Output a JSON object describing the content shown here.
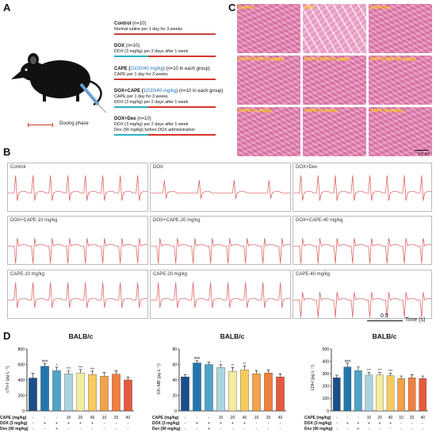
{
  "panels": {
    "a": "A",
    "b": "B",
    "c": "C",
    "d": "D"
  },
  "legend": {
    "dosing_phase": "Dosing phase"
  },
  "groups": [
    {
      "title_bold": "Control",
      "title_rest": " (n=10)",
      "title_blue": "",
      "lines": [
        "Normal saline per 1 day for 3 weeks"
      ]
    },
    {
      "title_bold": "DOX",
      "title_rest": " (n=10)",
      "title_blue": "",
      "lines": [
        "DOX (3 mg/kg) per 2 days after 1 week"
      ]
    },
    {
      "title_bold": "CAPE (",
      "title_blue": "10/20/40 mg/kg",
      "title_rest": ") (n=10 in each group)",
      "lines": [
        "CAPE per 1 day for 3 weeks"
      ]
    },
    {
      "title_bold": "DOX+CAPE (",
      "title_blue": "10/20/40 mg/kg",
      "title_rest": ") (n=10 in each group)",
      "lines": [
        "CAPE per 1 day for 3 weeks",
        "DOX (3 mg/kg) per 2 days after 1 week"
      ]
    },
    {
      "title_bold": "DOX+Dex",
      "title_rest": " (n=10)",
      "title_blue": "",
      "lines": [
        "DOX (3 mg/kg) per 2 days after 1 week",
        "Dex (90 mg/kg) before DOX administration"
      ]
    }
  ],
  "histology": {
    "labels": [
      "Control",
      "DOX",
      "DOX+Dex",
      "DOX+CAPE-10 mg/kg",
      "DOX+CAPE-20 mg/kg",
      "DOX+CAPE-40 mg/kg",
      "CAPE-10 mg/kg",
      "CAPE-20 mg/kg",
      "CAPE-40 mg/kg"
    ],
    "scale_bar": "100 μm"
  },
  "ecg": {
    "labels": [
      "Control",
      "DOX",
      "DOX+Dex",
      "DOX+CAPE-10 mg/kg",
      "DOX+CAPE-20 mg/kg",
      "DOX+CAPE-40 mg/kg",
      "CAPE-10 mg/kg",
      "CAPE-20 mg/kg",
      "CAPE-40 mg/kg"
    ],
    "scale_value": "0.5",
    "scale_unit": "Time (s)"
  },
  "treatment_table": {
    "rows": [
      "CAPE (mg/kg)",
      "DOX (3 mg/kg)",
      "Dex (90 mg/kg)"
    ],
    "cells": [
      [
        "-",
        "-",
        "-",
        "10",
        "20",
        "40",
        "10",
        "20",
        "40"
      ],
      [
        "-",
        "+",
        "+",
        "+",
        "+",
        "+",
        "-",
        "-",
        "-"
      ],
      [
        "-",
        "-",
        "+",
        "-",
        "-",
        "-",
        "-",
        "-",
        "-"
      ]
    ]
  },
  "chart_data": [
    {
      "type": "bar",
      "title": "BALB/c",
      "ylabel": "cTn-I (pg·L⁻¹)",
      "ylim": [
        0,
        800
      ],
      "yticks": [
        0,
        200,
        400,
        600,
        800
      ],
      "values": [
        425,
        578,
        520,
        478,
        490,
        470,
        448,
        475,
        400
      ],
      "errors": [
        60,
        35,
        45,
        40,
        45,
        45,
        50,
        45,
        35
      ],
      "annotations": [
        "",
        "###",
        "*",
        "***",
        "***",
        "***",
        "",
        "",
        ""
      ],
      "colors": [
        "#1c4f8a",
        "#2177ad",
        "#4fa3c7",
        "#a9d4df",
        "#f2eca0",
        "#f6cb5d",
        "#f2a24a",
        "#ef7f3f",
        "#e55a3c"
      ]
    },
    {
      "type": "bar",
      "title": "BALB/c",
      "ylabel": "CK-MB (pg·L⁻¹)",
      "ylim": [
        0,
        80
      ],
      "yticks": [
        0,
        20,
        40,
        60,
        80
      ],
      "values": [
        44,
        62,
        60,
        56,
        51,
        53,
        48,
        49,
        44
      ],
      "errors": [
        3,
        3,
        3,
        4,
        5,
        5,
        4,
        4,
        4
      ],
      "annotations": [
        "",
        "###",
        "",
        "*",
        "**",
        "**",
        "",
        "",
        ""
      ],
      "colors": [
        "#1c4f8a",
        "#2177ad",
        "#4fa3c7",
        "#a9d4df",
        "#f2eca0",
        "#f6cb5d",
        "#f2a24a",
        "#ef7f3f",
        "#e55a3c"
      ]
    },
    {
      "type": "bar",
      "title": "BALB/c",
      "ylabel": "LDH (pg·L⁻¹)",
      "ylim": [
        0,
        500
      ],
      "yticks": [
        0,
        100,
        200,
        300,
        400,
        500
      ],
      "values": [
        268,
        355,
        325,
        290,
        290,
        285,
        262,
        268,
        262
      ],
      "errors": [
        20,
        30,
        30,
        20,
        20,
        20,
        20,
        25,
        20
      ],
      "annotations": [
        "",
        "###",
        "",
        "***",
        "***",
        "***",
        "",
        "",
        ""
      ],
      "colors": [
        "#1c4f8a",
        "#2177ad",
        "#4fa3c7",
        "#a9d4df",
        "#f2eca0",
        "#f6cb5d",
        "#f2a24a",
        "#ef7f3f",
        "#e55a3c"
      ]
    }
  ]
}
